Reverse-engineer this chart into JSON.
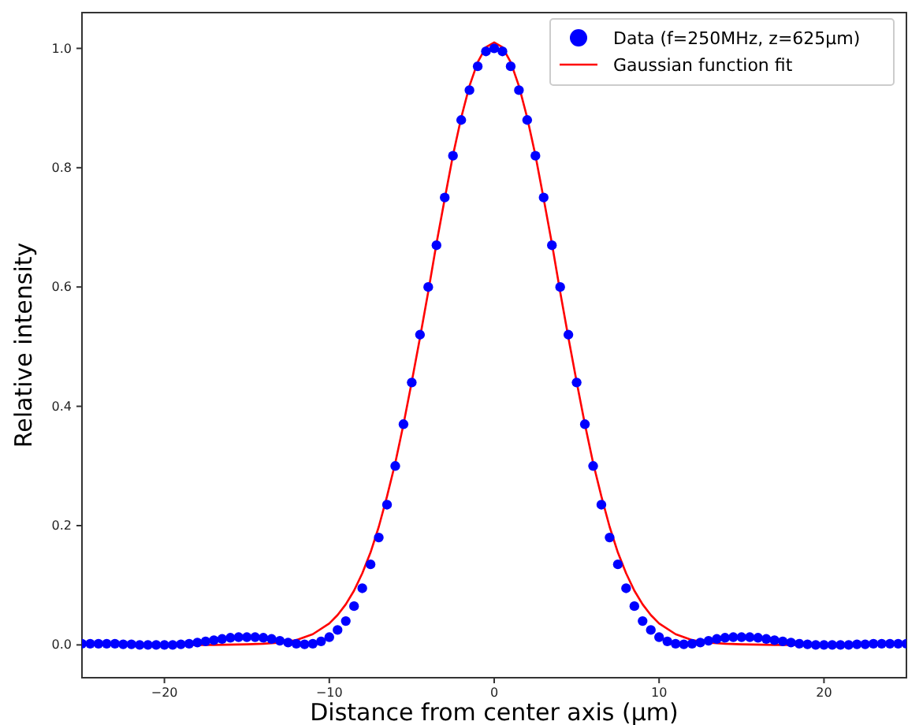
{
  "chart_data": {
    "type": "scatter",
    "xlabel": "Distance from center axis (µm)",
    "ylabel": "Relative intensity",
    "xlim": [
      -25,
      25
    ],
    "ylim": [
      -0.055,
      1.06
    ],
    "xticks": [
      {
        "value": -20,
        "label": "−20"
      },
      {
        "value": -10,
        "label": "−10"
      },
      {
        "value": 0,
        "label": "0"
      },
      {
        "value": 10,
        "label": "10"
      },
      {
        "value": 20,
        "label": "20"
      }
    ],
    "yticks": [
      {
        "value": 0,
        "label": "0.0"
      },
      {
        "value": 0.2,
        "label": "0.2"
      },
      {
        "value": 0.4,
        "label": "0.4"
      },
      {
        "value": 0.6,
        "label": "0.6"
      },
      {
        "value": 0.8,
        "label": "0.8"
      },
      {
        "value": 1,
        "label": "1.0"
      }
    ],
    "grid": false,
    "legend": "top right",
    "series": [
      {
        "name": "Data (f=250MHz, z=625µm)",
        "marker": "circle",
        "color": "#0000ff",
        "x": [
          -25,
          -24.5,
          -24,
          -23.5,
          -23,
          -22.5,
          -22,
          -21.5,
          -21,
          -20.5,
          -20,
          -19.5,
          -19,
          -18.5,
          -18,
          -17.5,
          -17,
          -16.5,
          -16,
          -15.5,
          -15,
          -14.5,
          -14,
          -13.5,
          -13,
          -12.5,
          -12,
          -11.5,
          -11,
          -10.5,
          -10,
          -9.5,
          -9,
          -8.5,
          -8,
          -7.5,
          -7,
          -6.5,
          -6,
          -5.5,
          -5,
          -4.5,
          -4,
          -3.5,
          -3,
          -2.5,
          -2,
          -1.5,
          -1,
          -0.5,
          0,
          0.5,
          1,
          1.5,
          2,
          2.5,
          3,
          3.5,
          4,
          4.5,
          5,
          5.5,
          6,
          6.5,
          7,
          7.5,
          8,
          8.5,
          9,
          9.5,
          10,
          10.5,
          11,
          11.5,
          12,
          12.5,
          13,
          13.5,
          14,
          14.5,
          15,
          15.5,
          16,
          16.5,
          17,
          17.5,
          18,
          18.5,
          19,
          19.5,
          20,
          20.5,
          21,
          21.5,
          22,
          22.5,
          23,
          23.5,
          24,
          24.5,
          25
        ],
        "values": [
          0.002,
          0.002,
          0.002,
          0.002,
          0.002,
          0.001,
          0.001,
          0.0,
          0.0,
          0.0,
          0.0,
          0.0,
          0.001,
          0.002,
          0.004,
          0.006,
          0.008,
          0.01,
          0.012,
          0.013,
          0.013,
          0.013,
          0.012,
          0.01,
          0.007,
          0.004,
          0.002,
          0.001,
          0.002,
          0.006,
          0.013,
          0.025,
          0.04,
          0.065,
          0.095,
          0.135,
          0.18,
          0.235,
          0.3,
          0.37,
          0.44,
          0.52,
          0.6,
          0.67,
          0.75,
          0.82,
          0.88,
          0.93,
          0.97,
          0.995,
          1.0,
          0.995,
          0.97,
          0.93,
          0.88,
          0.82,
          0.75,
          0.67,
          0.6,
          0.52,
          0.44,
          0.37,
          0.3,
          0.235,
          0.18,
          0.135,
          0.095,
          0.065,
          0.04,
          0.025,
          0.013,
          0.006,
          0.002,
          0.001,
          0.002,
          0.004,
          0.007,
          0.01,
          0.012,
          0.013,
          0.013,
          0.013,
          0.012,
          0.01,
          0.008,
          0.006,
          0.004,
          0.002,
          0.001,
          0.0,
          0.0,
          0.0,
          0.0,
          0.0,
          0.001,
          0.001,
          0.002,
          0.002,
          0.002,
          0.002,
          0.002
        ]
      },
      {
        "name": "Gaussian function fit",
        "type": "line",
        "marker": "none",
        "line_style": "solid",
        "color": "#ff0000",
        "x": [
          -25,
          -20,
          -17,
          -15,
          -14,
          -13,
          -12,
          -11,
          -10,
          -9.5,
          -9,
          -8.5,
          -8,
          -7.5,
          -7,
          -6.5,
          -6,
          -5.5,
          -5,
          -4.5,
          -4,
          -3.5,
          -3,
          -2.5,
          -2,
          -1.5,
          -1,
          -0.5,
          0,
          0.5,
          1,
          1.5,
          2,
          2.5,
          3,
          3.5,
          4,
          4.5,
          5,
          5.5,
          6,
          6.5,
          7,
          7.5,
          8,
          8.5,
          9,
          9.5,
          10,
          11,
          12,
          13,
          14,
          15,
          17,
          20,
          25
        ],
        "values": [
          0,
          0,
          0,
          0.001,
          0.002,
          0.004,
          0.008,
          0.018,
          0.036,
          0.05,
          0.068,
          0.091,
          0.12,
          0.155,
          0.198,
          0.249,
          0.305,
          0.37,
          0.441,
          0.515,
          0.592,
          0.673,
          0.748,
          0.821,
          0.884,
          0.937,
          0.977,
          1.002,
          1.01,
          1.002,
          0.977,
          0.937,
          0.884,
          0.821,
          0.748,
          0.673,
          0.592,
          0.515,
          0.441,
          0.37,
          0.305,
          0.249,
          0.198,
          0.155,
          0.12,
          0.091,
          0.068,
          0.05,
          0.036,
          0.018,
          0.008,
          0.004,
          0.002,
          0.001,
          0,
          0,
          0
        ]
      }
    ]
  }
}
